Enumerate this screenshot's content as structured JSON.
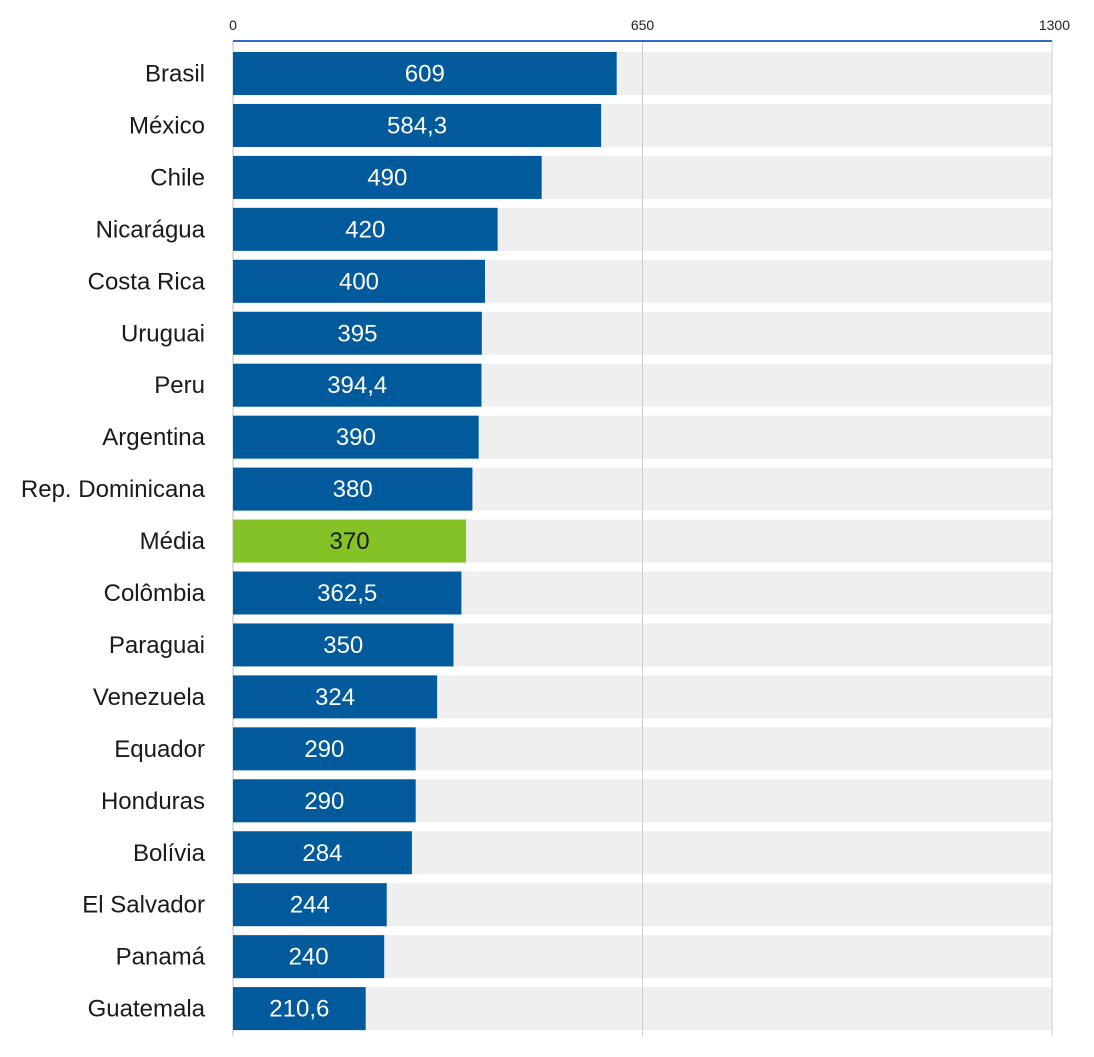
{
  "chart_data": {
    "type": "bar",
    "orientation": "horizontal",
    "title": "",
    "xlabel": "",
    "ylabel": "",
    "xlim": [
      0,
      1300
    ],
    "ticks": [
      "0",
      "650",
      "1300"
    ],
    "tick_values": [
      0,
      650,
      1300
    ],
    "grid": true,
    "categories": [
      "Brasil",
      "México",
      "Chile",
      "Nicarágua",
      "Costa Rica",
      "Uruguai",
      "Peru",
      "Argentina",
      "Rep. Dominicana",
      "Média",
      "Colômbia",
      "Paraguai",
      "Venezuela",
      "Equador",
      "Honduras",
      "Bolívia",
      "El Salvador",
      "Panamá",
      "Guatemala"
    ],
    "values": [
      609,
      584.3,
      490,
      420,
      400,
      395,
      394.4,
      390,
      380,
      370,
      362.5,
      350,
      324,
      290,
      290,
      284,
      244,
      240,
      210.6
    ],
    "value_labels": [
      "609",
      "584,3",
      "490",
      "420",
      "400",
      "395",
      "394,4",
      "390",
      "380",
      "370",
      "362,5",
      "350",
      "324",
      "290",
      "290",
      "284",
      "244",
      "240",
      "210,6"
    ],
    "highlight_index": 9,
    "colors": {
      "bar": "#005a9c",
      "highlight": "#84c225",
      "track": "#efefef",
      "axis": "#2b6cc4",
      "grid": "#cccccc",
      "label_on_bar": "#ffffff",
      "label_on_highlight": "#1a1a1a"
    }
  }
}
